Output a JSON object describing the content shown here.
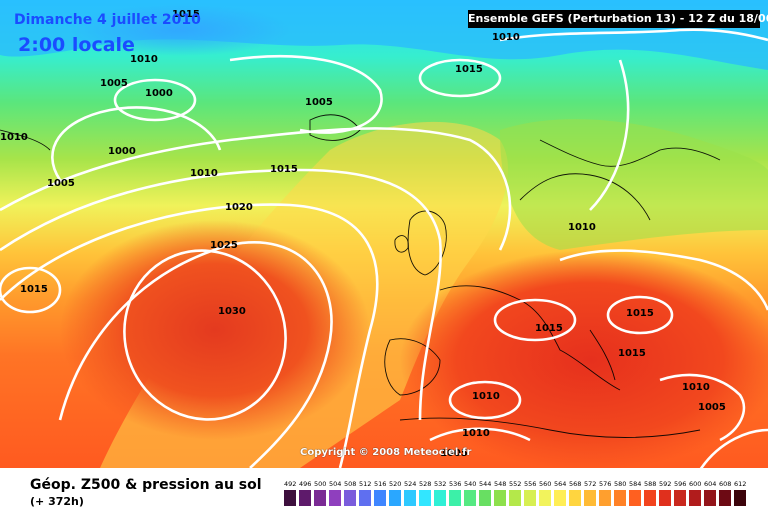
{
  "title": {
    "date": "Dimanche 4 juillet 2010",
    "time": "2:00 locale",
    "run": "Ensemble GEFS (Perturbation 13)  -  12 Z du 18/06/2010"
  },
  "copyright": "Copyright © 2008 Meteociel.fr",
  "footer": {
    "title": "Géop. Z500 & pression au sol",
    "subtitle": "(+ 372h)"
  },
  "isobar_labels": [
    "1015",
    "1010",
    "1005",
    "1000",
    "1010",
    "1015",
    "1005",
    "1000",
    "1010",
    "1005",
    "1015",
    "1010",
    "1020",
    "1025",
    "1015",
    "1030",
    "1010",
    "1015",
    "1015",
    "1015",
    "1010",
    "1005",
    "1010",
    "1010",
    "1005"
  ],
  "legend": {
    "values": [
      "492",
      "496",
      "500",
      "504",
      "508",
      "512",
      "516",
      "520",
      "524",
      "528",
      "532",
      "536",
      "540",
      "544",
      "548",
      "552",
      "556",
      "560",
      "564",
      "568",
      "572",
      "576",
      "580",
      "584",
      "588",
      "592",
      "596",
      "600",
      "604",
      "608",
      "612"
    ],
    "colors": [
      "#3d0f3d",
      "#5e1a6b",
      "#7a2a94",
      "#8f3fbe",
      "#7a5cdc",
      "#5f6ff0",
      "#3f86ff",
      "#2aa7ff",
      "#2ec9ff",
      "#32e6ff",
      "#2ff0d6",
      "#3cf0a8",
      "#55e982",
      "#68df62",
      "#8de04c",
      "#b4e84a",
      "#d7ef52",
      "#f2f35c",
      "#ffee55",
      "#ffd53f",
      "#ffbb35",
      "#ff9f2e",
      "#ff8126",
      "#ff6020",
      "#f2431d",
      "#e0301d",
      "#c9281d",
      "#b11c1c",
      "#93141a",
      "#6d0a14",
      "#3c040b"
    ]
  }
}
